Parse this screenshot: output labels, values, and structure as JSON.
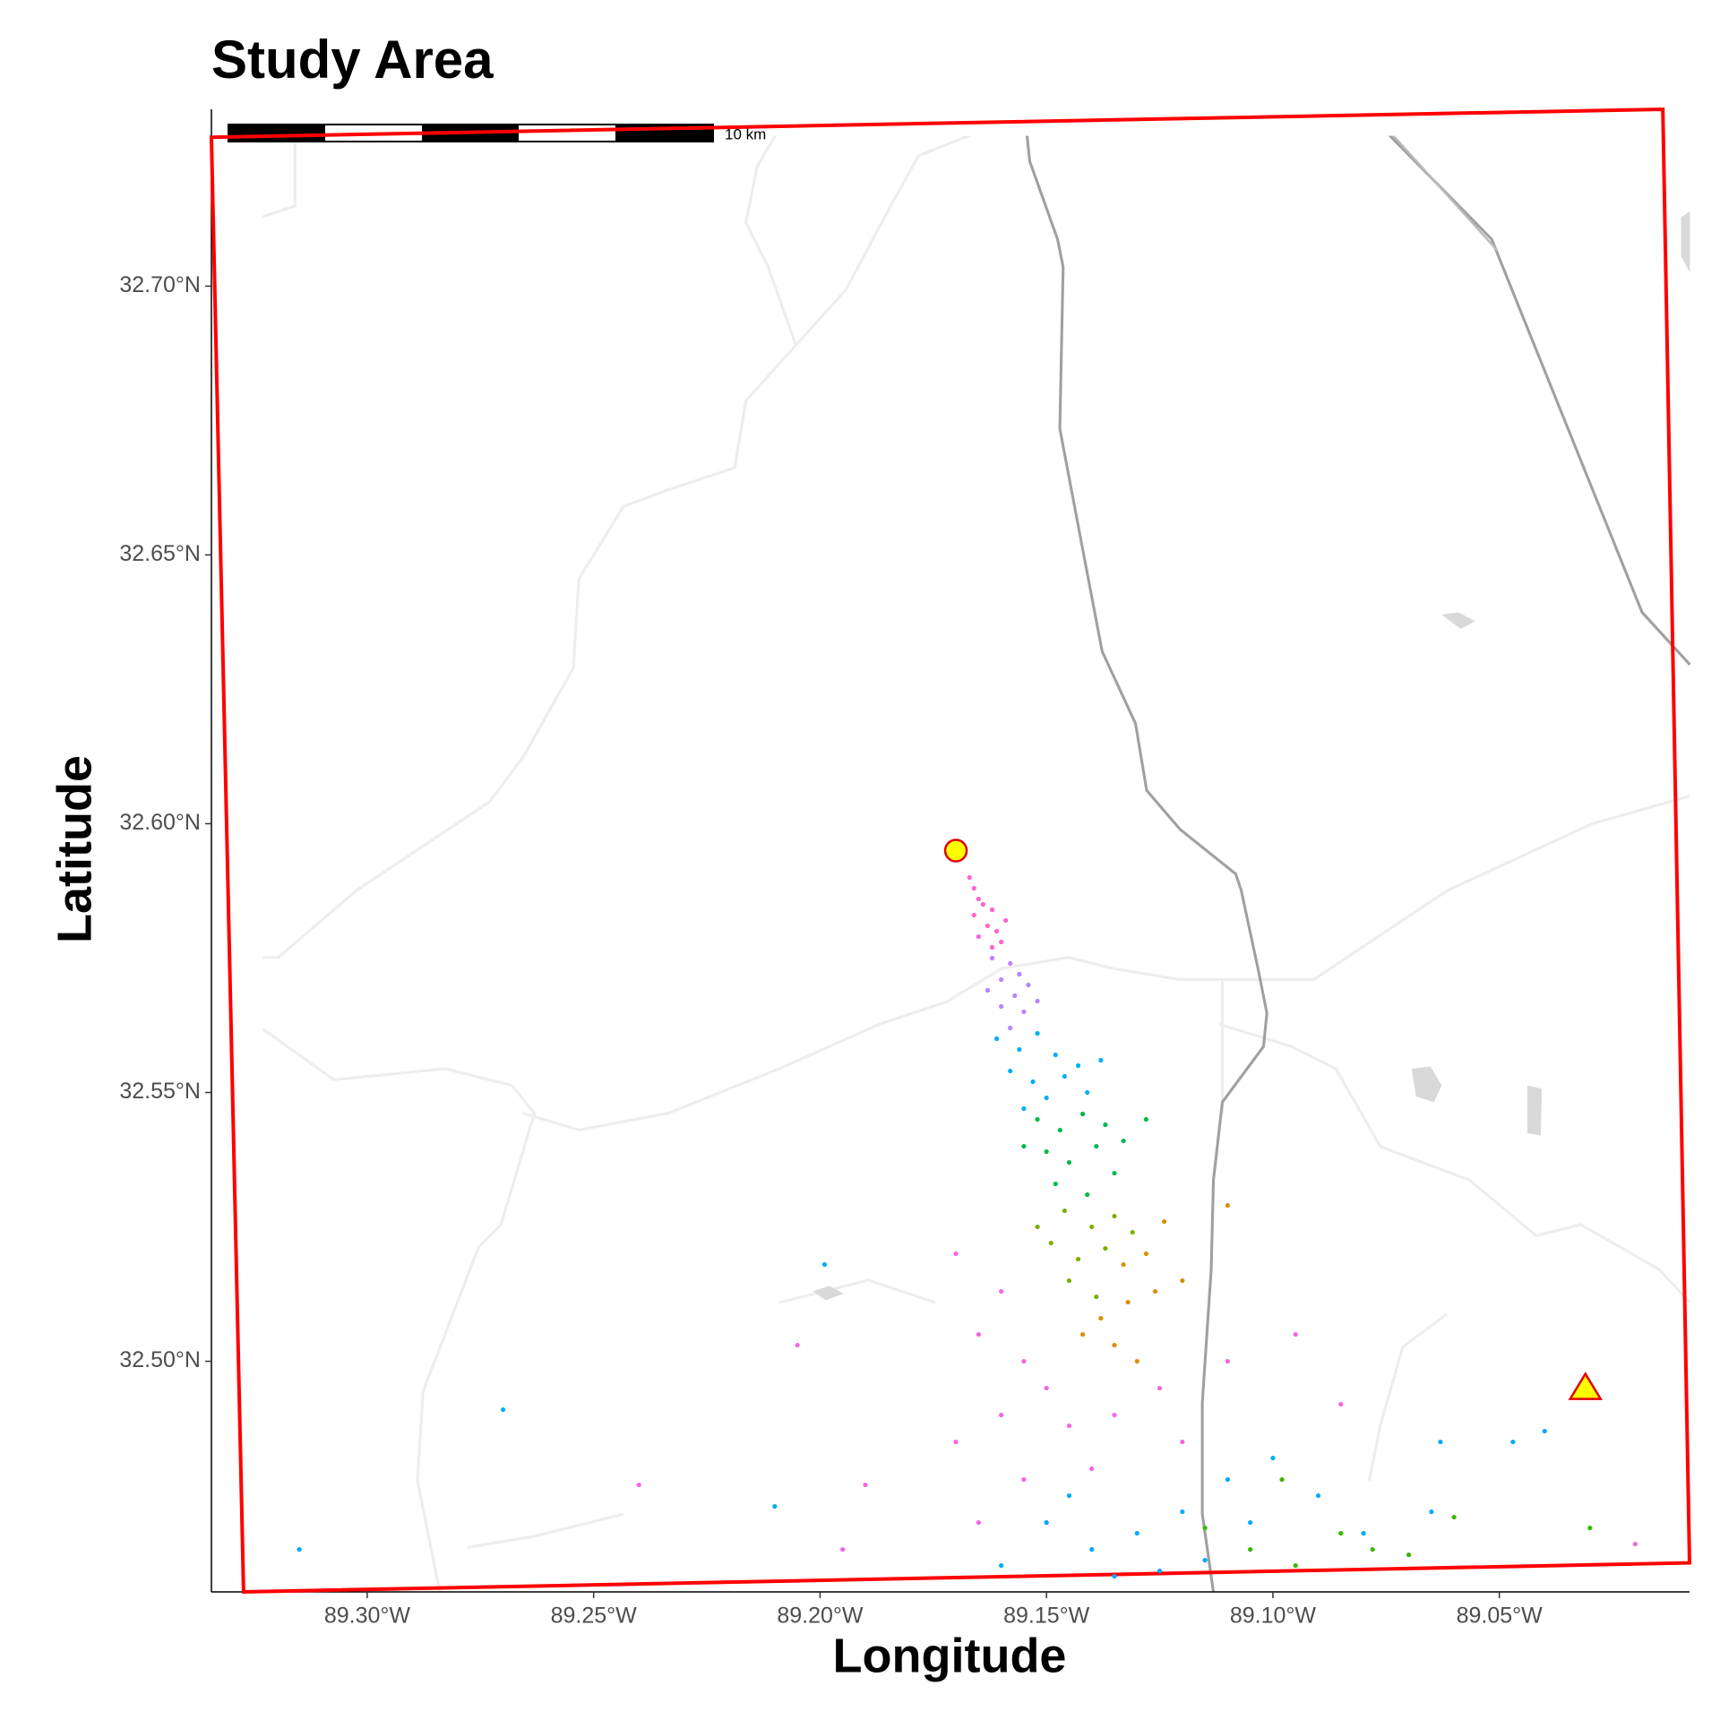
{
  "chart_data": {
    "type": "scatter",
    "title": "Study Area",
    "x_label": "Longitude",
    "y_label": "Latitude",
    "xlim": [
      -89.3344,
      -89.008
    ],
    "ylim": [
      32.4571,
      32.7329
    ],
    "xticks": [
      {
        "value": -89.3,
        "label": "89.30°W"
      },
      {
        "value": -89.25,
        "label": "89.25°W"
      },
      {
        "value": -89.2,
        "label": "89.20°W"
      },
      {
        "value": -89.15,
        "label": "89.15°W"
      },
      {
        "value": -89.1,
        "label": "89.10°W"
      },
      {
        "value": -89.05,
        "label": "89.05°W"
      }
    ],
    "yticks": [
      {
        "value": 32.5,
        "label": "32.50°N"
      },
      {
        "value": 32.55,
        "label": "32.55°N"
      },
      {
        "value": 32.6,
        "label": "32.60°N"
      },
      {
        "value": 32.65,
        "label": "32.65°N"
      },
      {
        "value": 32.7,
        "label": "32.70°N"
      }
    ],
    "scale_bar_label": "10 km",
    "boundary": {
      "color": "#ff0000",
      "x": [
        -89.3344,
        -89.0139,
        -89.008,
        -89.3273
      ],
      "y": [
        32.7277,
        32.7329,
        32.4625,
        32.4571
      ]
    },
    "source": {
      "x": -89.17,
      "y": 32.595,
      "color": "#ffff00",
      "edge": "#e00000"
    },
    "receptor": {
      "x": -89.031,
      "y": 32.495,
      "color": "#ffff00",
      "edge": "#e00000"
    },
    "series": [
      {
        "color": "#ff63c8",
        "x": [
          -89.167,
          -89.166,
          -89.165,
          -89.164,
          -89.166,
          -89.162,
          -89.163,
          -89.161,
          -89.165,
          -89.16,
          -89.162,
          -89.159
        ],
        "values": [
          32.59,
          32.588,
          32.586,
          32.585,
          32.583,
          32.584,
          32.581,
          32.58,
          32.579,
          32.578,
          32.577,
          32.582
        ]
      },
      {
        "color": "#b983ff",
        "x": [
          -89.162,
          -89.158,
          -89.16,
          -89.156,
          -89.163,
          -89.157,
          -89.154,
          -89.16,
          -89.155,
          -89.152,
          -89.158
        ],
        "values": [
          32.575,
          32.574,
          32.571,
          32.572,
          32.569,
          32.568,
          32.57,
          32.566,
          32.565,
          32.567,
          32.562
        ]
      },
      {
        "color": "#00b0f6",
        "x": [
          -89.161,
          -89.156,
          -89.152,
          -89.148,
          -89.158,
          -89.153,
          -89.146,
          -89.15,
          -89.143,
          -89.155,
          -89.141,
          -89.138
        ],
        "values": [
          32.56,
          32.558,
          32.561,
          32.557,
          32.554,
          32.552,
          32.553,
          32.549,
          32.555,
          32.547,
          32.55,
          32.556
        ]
      },
      {
        "color": "#00b84a",
        "x": [
          -89.152,
          -89.147,
          -89.142,
          -89.137,
          -89.15,
          -89.145,
          -89.139,
          -89.133,
          -89.148,
          -89.141,
          -89.135,
          -89.128,
          -89.155
        ],
        "values": [
          32.545,
          32.543,
          32.546,
          32.544,
          32.539,
          32.537,
          32.54,
          32.541,
          32.533,
          32.531,
          32.535,
          32.545,
          32.54
        ]
      },
      {
        "color": "#7cae00",
        "x": [
          -89.146,
          -89.14,
          -89.135,
          -89.149,
          -89.143,
          -89.137,
          -89.131,
          -89.145,
          -89.139,
          -89.152
        ],
        "values": [
          32.528,
          32.525,
          32.527,
          32.522,
          32.519,
          32.521,
          32.524,
          32.515,
          32.512,
          32.525
        ]
      },
      {
        "color": "#d89000",
        "x": [
          -89.133,
          -89.128,
          -89.124,
          -89.138,
          -89.132,
          -89.126,
          -89.142,
          -89.135,
          -89.12,
          -89.13,
          -89.11
        ],
        "values": [
          32.518,
          32.52,
          32.526,
          32.508,
          32.511,
          32.513,
          32.505,
          32.503,
          32.515,
          32.5,
          32.529
        ]
      },
      {
        "color": "#f564e3",
        "x": [
          -89.17,
          -89.16,
          -89.165,
          -89.155,
          -89.15,
          -89.16,
          -89.145,
          -89.17,
          -89.14,
          -89.155,
          -89.135,
          -89.125,
          -89.12,
          -89.165,
          -89.15,
          -89.11,
          -89.095,
          -89.085,
          -89.205,
          -89.24,
          -89.195,
          -89.19,
          -89.02
        ],
        "values": [
          32.52,
          32.513,
          32.505,
          32.5,
          32.495,
          32.49,
          32.488,
          32.485,
          32.48,
          32.478,
          32.49,
          32.495,
          32.485,
          32.47,
          32.47,
          32.5,
          32.505,
          32.492,
          32.503,
          32.477,
          32.465,
          32.477,
          32.466
        ]
      },
      {
        "color": "#00a9ff",
        "x": [
          -89.15,
          -89.14,
          -89.13,
          -89.12,
          -89.11,
          -89.1,
          -89.145,
          -89.135,
          -89.125,
          -89.115,
          -89.16,
          -89.105,
          -89.09,
          -89.08,
          -89.27,
          -89.315,
          -89.199,
          -89.047,
          -89.04,
          -89.063,
          -89.065,
          -89.21
        ],
        "values": [
          32.47,
          32.465,
          32.468,
          32.472,
          32.478,
          32.482,
          32.475,
          32.46,
          32.461,
          32.463,
          32.462,
          32.47,
          32.475,
          32.468,
          32.491,
          32.465,
          32.518,
          32.485,
          32.487,
          32.485,
          32.472,
          32.473
        ]
      },
      {
        "color": "#39b600",
        "x": [
          -89.105,
          -89.095,
          -89.085,
          -89.07,
          -89.115,
          -89.098,
          -89.03,
          -89.06,
          -89.078
        ],
        "values": [
          32.465,
          32.462,
          32.468,
          32.464,
          32.469,
          32.478,
          32.469,
          32.471,
          32.465
        ]
      }
    ]
  }
}
